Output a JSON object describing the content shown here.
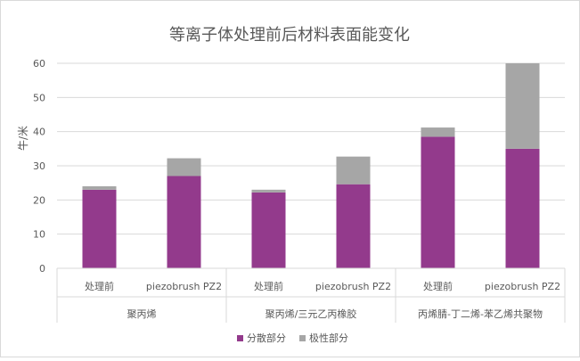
{
  "chart_data": {
    "type": "bar",
    "stacked": true,
    "title": "等离子体处理前后材料表面能变化",
    "ylabel": "牛/米",
    "ylim": [
      0,
      60
    ],
    "yticks": [
      0,
      10,
      20,
      30,
      40,
      50,
      60
    ],
    "grid": true,
    "legend_position": "bottom",
    "groups": [
      {
        "label": "聚丙烯",
        "categories": [
          "处理前",
          "piezobrush PZ2"
        ]
      },
      {
        "label": "聚丙烯/三元乙丙橡胶",
        "categories": [
          "处理前",
          "piezobrush PZ2"
        ]
      },
      {
        "label": "丙烯腈-丁二烯-苯乙烯共聚物",
        "categories": [
          "处理前",
          "piezobrush PZ2"
        ]
      }
    ],
    "series": [
      {
        "name": "分散部分",
        "color": "#933a8c",
        "values": [
          23,
          27,
          22.2,
          24.6,
          38.5,
          35
        ]
      },
      {
        "name": "极性部分",
        "color": "#a6a6a6",
        "values": [
          1,
          5.2,
          0.8,
          8.1,
          2.7,
          25
        ]
      }
    ]
  }
}
